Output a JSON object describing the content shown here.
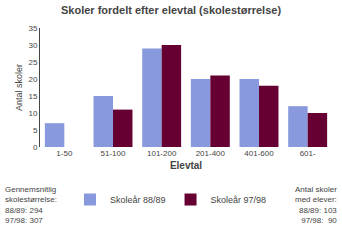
{
  "chart_data": {
    "type": "bar",
    "title": "Skoler fordelt efter elevtal (skolestørrelse)",
    "xlabel": "Elevtal",
    "ylabel": "Antal skoler",
    "categories": [
      "1-50",
      "51-100",
      "101-200",
      "201-400",
      "401-600",
      "601-"
    ],
    "series": [
      {
        "name": "Skoleår 88/89",
        "color": "#8899DD",
        "values": [
          7,
          15,
          29,
          20,
          20,
          12
        ]
      },
      {
        "name": "Skoleår 97/98",
        "color": "#660033",
        "values": [
          0,
          11,
          30,
          21,
          18,
          10
        ]
      }
    ],
    "ylim": [
      0,
      35
    ],
    "yticks": [
      0,
      5,
      10,
      15,
      20,
      25,
      30,
      35
    ],
    "grid": false,
    "legend": "bottom",
    "annotations": [
      "Gennemsnitlig\nskolestørrelse:\n88/89: 294\n97/98: 307",
      "Antal skoler\nmed elever:\n88/89: 103\n97/98:  90"
    ]
  }
}
